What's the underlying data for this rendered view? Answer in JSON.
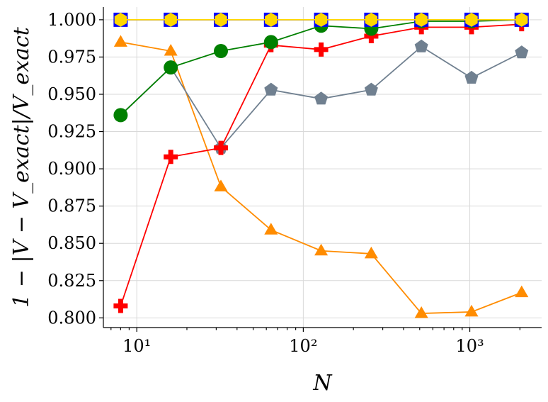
{
  "chart_data": {
    "type": "line",
    "xscale": "log",
    "xlim": [
      6.3,
      2700
    ],
    "ylim": [
      0.7935,
      1.0085
    ],
    "xlabel": "N",
    "ylabel": "1 − |V − V_exact|/V_exact",
    "grid": true,
    "legend": "none",
    "yticks": [
      0.8,
      0.825,
      0.85,
      0.875,
      0.9,
      0.925,
      0.95,
      0.975,
      1.0
    ],
    "ytick_labels": [
      "0.800",
      "0.825",
      "0.850",
      "0.875",
      "0.900",
      "0.925",
      "0.950",
      "0.975",
      "1.000"
    ],
    "xticks": [
      10,
      100,
      1000
    ],
    "xtick_labels": [
      "10¹",
      "10²",
      "10³"
    ],
    "x": [
      8,
      16,
      32,
      64,
      128,
      256,
      512,
      1024,
      2048
    ],
    "series": [
      {
        "color": "#ff8c00",
        "marker": "triangle",
        "values": [
          0.985,
          0.979,
          0.888,
          0.859,
          0.845,
          0.843,
          0.803,
          0.804,
          0.817
        ]
      },
      {
        "color": "#708090",
        "marker": "pentagon",
        "values": [
          0.936,
          0.968,
          0.914,
          0.953,
          0.947,
          0.953,
          0.982,
          0.961,
          0.978
        ]
      },
      {
        "color": "#ff0000",
        "marker": "plus",
        "values": [
          0.808,
          0.908,
          0.914,
          0.983,
          0.98,
          0.989,
          0.995,
          0.995,
          0.997
        ]
      },
      {
        "color": "#008000",
        "marker": "circle",
        "values": [
          0.936,
          0.968,
          0.979,
          0.985,
          0.996,
          0.994,
          0.999,
          0.999,
          1.0
        ]
      },
      {
        "color": "#0000ff",
        "marker": "square",
        "values": [
          1.0,
          1.0,
          1.0,
          1.0,
          1.0,
          1.0,
          1.0,
          1.0,
          1.0
        ]
      },
      {
        "color": "#ffd700",
        "marker": "hexagon",
        "values": [
          1.0,
          1.0,
          1.0,
          1.0,
          1.0,
          1.0,
          1.0,
          1.0,
          1.0
        ]
      }
    ]
  }
}
